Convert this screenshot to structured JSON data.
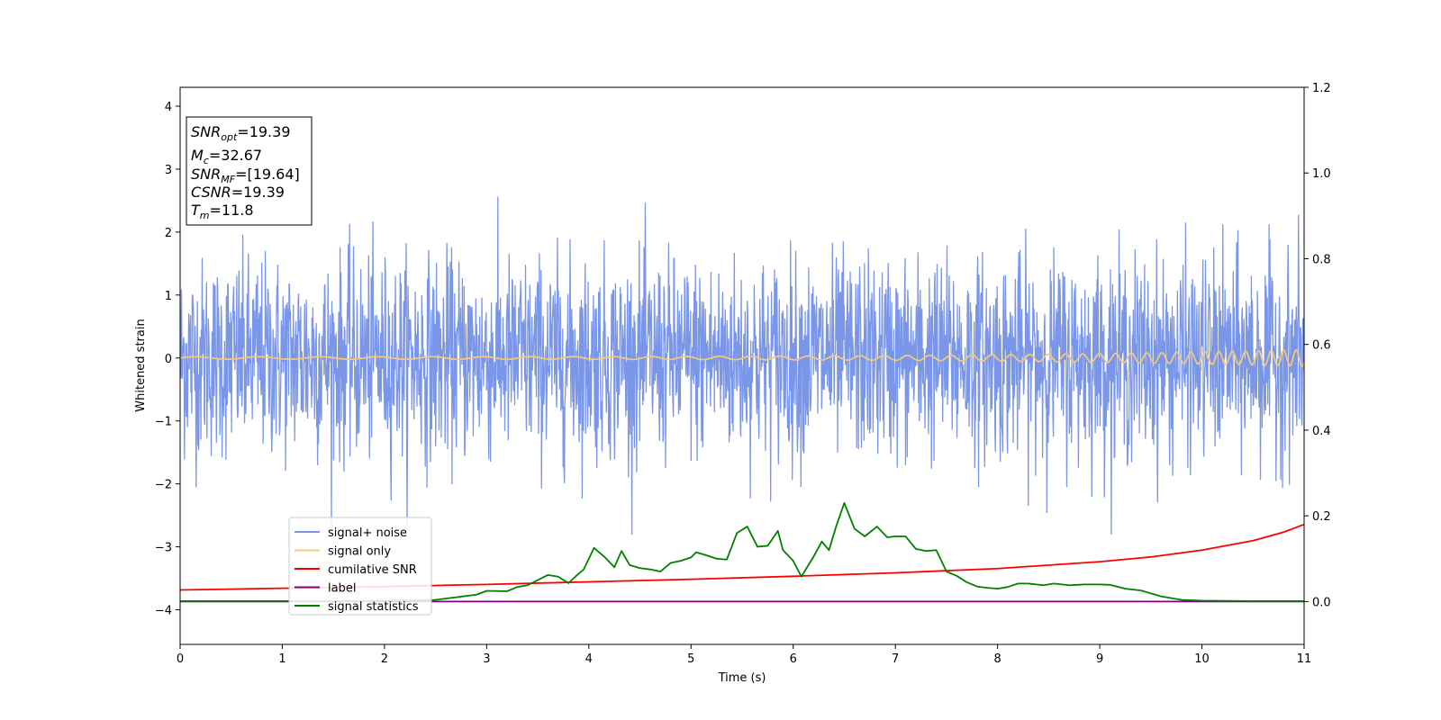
{
  "chart_data": {
    "type": "line",
    "xlabel": "Time (s)",
    "ylabel": "Whitened strain",
    "xlim": [
      0,
      11
    ],
    "ylim_left": [
      -4.55,
      4.3
    ],
    "ylim_right": [
      -0.1,
      1.2
    ],
    "xticks": [
      0,
      1,
      2,
      3,
      4,
      5,
      6,
      7,
      8,
      9,
      10,
      11
    ],
    "yticks_left": [
      -4,
      -3,
      -2,
      -1,
      0,
      1,
      2,
      3,
      4
    ],
    "yticks_right": [
      "0.0",
      "0.2",
      "0.4",
      "0.6",
      "0.8",
      "1.0",
      "1.2"
    ],
    "grid": false,
    "legend_position": "lower-left",
    "stats": {
      "snr_opt_sym": "SNR",
      "snr_opt_sub": "opt",
      "snr_opt_val": "=19.39",
      "mc_sym": "M",
      "mc_sub": "c",
      "mc_val": "=32.67",
      "snr_mf_sym": "SNR",
      "snr_mf_sub": "MF",
      "snr_mf_val": "=[19.64]",
      "csnr_sym": "CSNR",
      "csnr_val": "=19.39",
      "tm_sym": "T",
      "tm_sub": "m",
      "tm_val": "=11.8"
    },
    "series": [
      {
        "name": "signal+ noise",
        "color": "#7a96e8",
        "axis": "left",
        "noise": {
          "sigma": 0.78,
          "peak_abs": 2.8,
          "samples": 2600
        }
      },
      {
        "name": "signal only",
        "color": "#f4c77a",
        "axis": "left",
        "chirp": {
          "t_start": 0,
          "t_end": 11,
          "amp_start": 0.02,
          "amp_end": 0.13,
          "freq_start": 1.6,
          "freq_end": 8.5
        }
      },
      {
        "name": "cumilative SNR",
        "color": "#ff0000",
        "axis": "right",
        "x": [
          0,
          1,
          2,
          3,
          4,
          5,
          6,
          7,
          8,
          9,
          9.5,
          10,
          10.5,
          10.8,
          11
        ],
        "y": [
          0.027,
          0.031,
          0.035,
          0.04,
          0.046,
          0.052,
          0.059,
          0.067,
          0.077,
          0.093,
          0.104,
          0.12,
          0.142,
          0.162,
          0.18
        ]
      },
      {
        "name": "label",
        "color": "#800080",
        "axis": "right",
        "x": [
          0,
          11
        ],
        "y": [
          0,
          0
        ]
      },
      {
        "name": "signal statistics",
        "color": "#008000",
        "axis": "right",
        "x": [
          0,
          0.5,
          1,
          1.5,
          2,
          2.5,
          2.7,
          2.9,
          3.0,
          3.2,
          3.3,
          3.4,
          3.5,
          3.6,
          3.7,
          3.8,
          3.9,
          3.95,
          4.05,
          4.15,
          4.25,
          4.32,
          4.4,
          4.5,
          4.6,
          4.7,
          4.8,
          4.9,
          5.0,
          5.05,
          5.15,
          5.25,
          5.35,
          5.45,
          5.55,
          5.65,
          5.75,
          5.85,
          5.9,
          6.0,
          6.08,
          6.2,
          6.28,
          6.35,
          6.42,
          6.5,
          6.6,
          6.7,
          6.82,
          6.92,
          7.0,
          7.1,
          7.2,
          7.3,
          7.4,
          7.5,
          7.6,
          7.7,
          7.8,
          7.9,
          8.0,
          8.1,
          8.2,
          8.3,
          8.45,
          8.55,
          8.7,
          8.85,
          9.0,
          9.1,
          9.25,
          9.4,
          9.6,
          9.8,
          10.0,
          10.5,
          11.0
        ],
        "y": [
          0.001,
          0.001,
          0.001,
          0.001,
          0.002,
          0.004,
          0.01,
          0.016,
          0.025,
          0.024,
          0.034,
          0.038,
          0.05,
          0.062,
          0.058,
          0.043,
          0.065,
          0.075,
          0.125,
          0.105,
          0.08,
          0.118,
          0.085,
          0.078,
          0.075,
          0.07,
          0.09,
          0.095,
          0.103,
          0.115,
          0.108,
          0.1,
          0.098,
          0.16,
          0.175,
          0.128,
          0.13,
          0.165,
          0.12,
          0.095,
          0.058,
          0.105,
          0.14,
          0.12,
          0.175,
          0.23,
          0.17,
          0.152,
          0.175,
          0.15,
          0.152,
          0.152,
          0.123,
          0.118,
          0.12,
          0.07,
          0.06,
          0.045,
          0.035,
          0.032,
          0.03,
          0.034,
          0.042,
          0.042,
          0.038,
          0.042,
          0.038,
          0.04,
          0.04,
          0.039,
          0.03,
          0.026,
          0.012,
          0.004,
          0.002,
          0.001,
          0.001
        ]
      }
    ]
  }
}
